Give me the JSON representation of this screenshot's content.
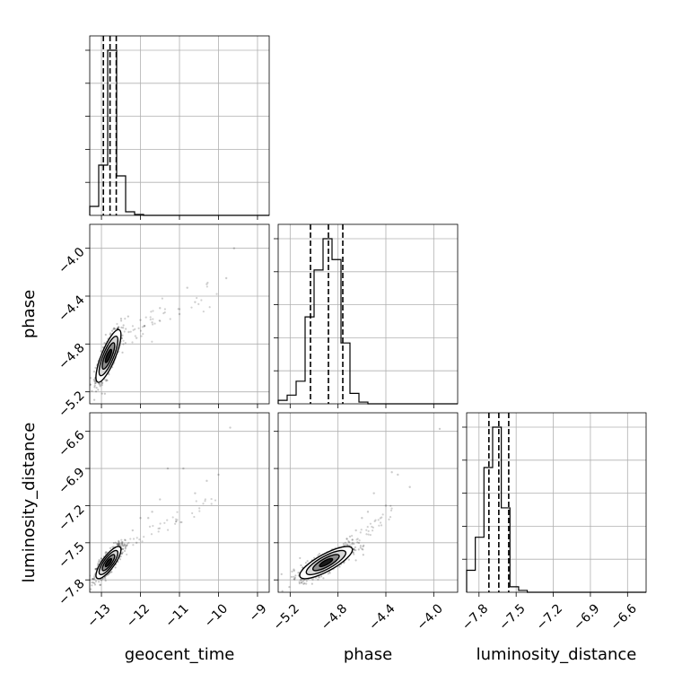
{
  "chart_data": {
    "type": "scatter",
    "subtype": "corner",
    "parameters": [
      "geocent_time",
      "phase",
      "luminosity_distance"
    ],
    "ranges": {
      "geocent_time": [
        -13.3,
        -8.7
      ],
      "phase": [
        -5.3,
        -3.8
      ],
      "luminosity_distance": [
        -7.9,
        -6.45
      ]
    },
    "ticks": {
      "geocent_time": {
        "values": [
          -13,
          -12,
          -11,
          -10,
          -9
        ],
        "labels": [
          "−13",
          "−12",
          "−11",
          "−10",
          "−9"
        ]
      },
      "phase": {
        "values": [
          -5.2,
          -4.8,
          -4.4,
          -4.0
        ],
        "labels": [
          "−5.2",
          "−4.8",
          "−4.4",
          "−4.0"
        ]
      },
      "luminosity_distance": {
        "values": [
          -7.8,
          -7.5,
          -7.2,
          -6.9,
          -6.6
        ],
        "labels": [
          "−7.8",
          "−7.5",
          "−7.2",
          "−6.9",
          "−6.6"
        ]
      }
    },
    "grid": true,
    "histograms": {
      "geocent_time": {
        "edges": [
          -13.3,
          -13.07,
          -12.84,
          -12.61,
          -12.38,
          -12.15,
          -11.92,
          -11.69,
          -11.46,
          -11.23,
          -11.0
        ],
        "counts": [
          0.05,
          0.28,
          0.92,
          0.22,
          0.02,
          0.005,
          0,
          0,
          0,
          0
        ]
      },
      "phase": {
        "edges": [
          -5.3,
          -5.225,
          -5.15,
          -5.075,
          -5.0,
          -4.925,
          -4.85,
          -4.775,
          -4.7,
          -4.625,
          -4.55
        ],
        "counts": [
          0.02,
          0.05,
          0.13,
          0.5,
          0.77,
          0.95,
          0.83,
          0.35,
          0.06,
          0.01
        ]
      },
      "luminosity_distance": {
        "edges": [
          -7.9,
          -7.83,
          -7.76,
          -7.69,
          -7.62,
          -7.55,
          -7.48,
          -7.41
        ],
        "counts": [
          0.12,
          0.3,
          0.68,
          0.9,
          0.46,
          0.03,
          0.01
        ]
      }
    },
    "quantiles": {
      "geocent_time": [
        -12.95,
        -12.78,
        -12.62
      ],
      "phase": [
        -5.03,
        -4.88,
        -4.76
      ],
      "luminosity_distance": [
        -7.72,
        -7.64,
        -7.56
      ]
    },
    "pairs": [
      {
        "x": "geocent_time",
        "y": "phase",
        "center": [
          -12.82,
          -4.9
        ],
        "spread": [
          0.16,
          0.11
        ],
        "corr": 0.8,
        "tail": {
          "x": [
            -12.6,
            -10.0
          ],
          "y": [
            -4.75,
            -4.3
          ]
        },
        "outliers": [
          [
            -10.3,
            -4.3
          ],
          [
            -10.8,
            -4.33
          ],
          [
            -9.6,
            -4.0
          ],
          [
            -9.8,
            -4.25
          ],
          [
            -11.5,
            -4.5
          ],
          [
            -11.0,
            -4.55
          ],
          [
            -12.0,
            -4.6
          ],
          [
            -12.3,
            -4.7
          ],
          [
            -11.7,
            -4.62
          ],
          [
            -10.6,
            -4.45
          ],
          [
            -12.1,
            -4.75
          ],
          [
            -11.9,
            -4.65
          ]
        ]
      },
      {
        "x": "geocent_time",
        "y": "luminosity_distance",
        "center": [
          -12.82,
          -7.66
        ],
        "spread": [
          0.16,
          0.065
        ],
        "corr": 0.8,
        "tail": {
          "x": [
            -12.6,
            -10.0
          ],
          "y": [
            -7.55,
            -7.15
          ]
        },
        "outliers": [
          [
            -11.3,
            -6.9
          ],
          [
            -10.9,
            -6.9
          ],
          [
            -10.3,
            -7.0
          ],
          [
            -9.7,
            -6.57
          ],
          [
            -10.0,
            -6.95
          ],
          [
            -11.5,
            -7.15
          ],
          [
            -12.0,
            -7.3
          ],
          [
            -12.2,
            -7.4
          ],
          [
            -11.8,
            -7.3
          ],
          [
            -10.6,
            -7.1
          ],
          [
            -12.1,
            -7.5
          ],
          [
            -11.7,
            -7.25
          ]
        ]
      },
      {
        "x": "phase",
        "y": "luminosity_distance",
        "center": [
          -4.9,
          -7.66
        ],
        "spread": [
          0.11,
          0.065
        ],
        "corr": 0.8,
        "tail": {
          "x": [
            -4.75,
            -4.35
          ],
          "y": [
            -7.55,
            -7.25
          ]
        },
        "outliers": [
          [
            -4.35,
            -6.93
          ],
          [
            -4.3,
            -6.95
          ],
          [
            -3.95,
            -6.58
          ],
          [
            -4.5,
            -7.1
          ],
          [
            -4.6,
            -7.3
          ],
          [
            -4.65,
            -7.4
          ],
          [
            -4.4,
            -7.2
          ],
          [
            -4.7,
            -7.45
          ],
          [
            -4.55,
            -7.25
          ],
          [
            -4.2,
            -7.05
          ]
        ]
      }
    ]
  }
}
